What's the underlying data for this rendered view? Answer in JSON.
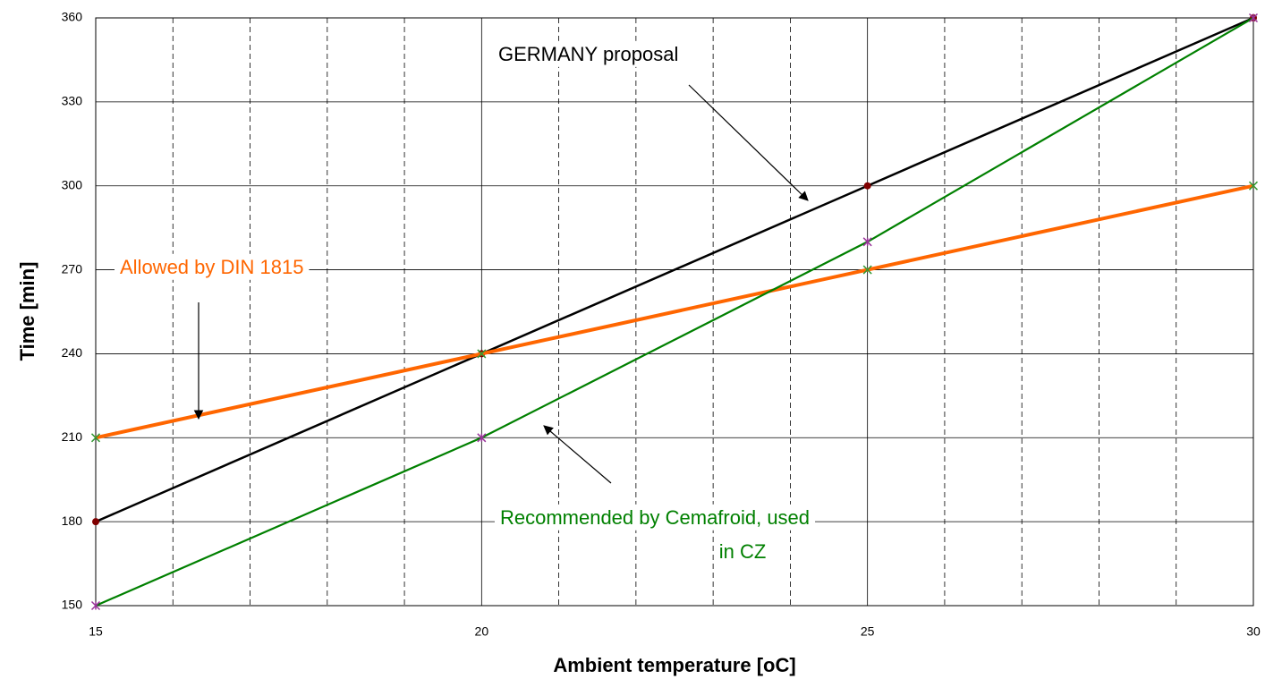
{
  "chart_data": {
    "type": "line",
    "x_label": "Ambient temperature [oC]",
    "y_label": "Time [min]",
    "x": [
      15,
      20,
      25,
      30
    ],
    "series": [
      {
        "name": "GERMANY proposal",
        "color": "#000000",
        "marker_color": "#800000",
        "values": [
          180,
          240,
          300,
          360
        ]
      },
      {
        "name": "Allowed by DIN 1815",
        "color": "#ff6600",
        "marker_color": "#339933",
        "values": [
          210,
          240,
          270,
          300
        ]
      },
      {
        "name": "Recommended by Cemafroid, used in CZ",
        "color": "#008000",
        "marker_color": "#993399",
        "values": [
          150,
          210,
          280,
          360
        ]
      }
    ],
    "annotations": [
      {
        "lines": [
          "GERMANY proposal"
        ],
        "color": "#000000"
      },
      {
        "lines": [
          "Allowed by DIN 1815"
        ],
        "color": "#ff6600"
      },
      {
        "lines": [
          "Recommended by Cemafroid, used",
          "in CZ"
        ],
        "color": "#008000"
      }
    ],
    "xlim": [
      15,
      30
    ],
    "xticks": [
      15,
      20,
      25,
      30
    ],
    "x_minor_grid": [
      16,
      17,
      18,
      19,
      21,
      22,
      23,
      24,
      26,
      27,
      28,
      29
    ],
    "ylim": [
      150,
      360
    ],
    "yticks": [
      150,
      180,
      210,
      240,
      270,
      300,
      330,
      360
    ],
    "grid": true
  }
}
